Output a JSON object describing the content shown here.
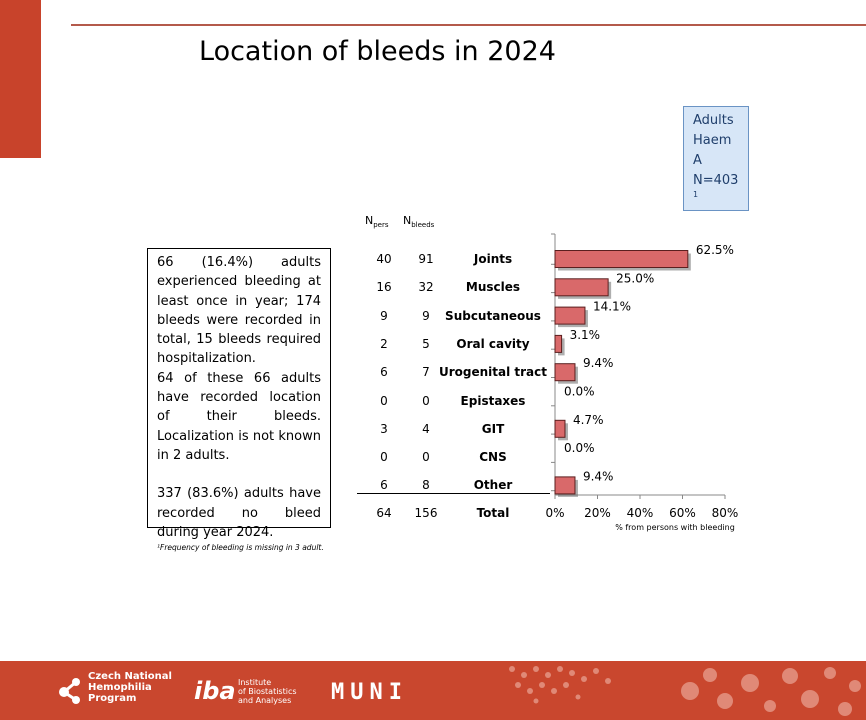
{
  "title": "Location of bleeds in 2024",
  "info_box": {
    "lines": [
      "Adults",
      "Haem",
      "A",
      "N=403"
    ],
    "superscript": "1"
  },
  "text_box": {
    "para1": "66 (16.4%) adults experienced bleeding at least once in year; 174 bleeds were recorded in total, 15 bleeds required hospitalization.",
    "para2": "64 of these 66 adults have recorded location of their bleeds. Localization is not known in 2 adults.",
    "para3": "337 (83.6%) adults have recorded no bleed during year 2024."
  },
  "footnote": "¹Frequency of bleeding is missing in 3 adult.",
  "table": {
    "header_npers": "N",
    "header_npers_sub": "pers",
    "header_nbleeds": "N",
    "header_nbleeds_sub": "bleeds",
    "rows": [
      {
        "npers": "40",
        "nbleeds": "91"
      },
      {
        "npers": "16",
        "nbleeds": "32"
      },
      {
        "npers": "9",
        "nbleeds": "9"
      },
      {
        "npers": "2",
        "nbleeds": "5"
      },
      {
        "npers": "6",
        "nbleeds": "7"
      },
      {
        "npers": "0",
        "nbleeds": "0"
      },
      {
        "npers": "3",
        "nbleeds": "4"
      },
      {
        "npers": "0",
        "nbleeds": "0"
      },
      {
        "npers": "6",
        "nbleeds": "8"
      }
    ],
    "total": {
      "npers": "64",
      "nbleeds": "156",
      "label": "Total"
    }
  },
  "chart_data": {
    "type": "bar",
    "orientation": "horizontal",
    "categories": [
      "Joints",
      "Muscles",
      "Subcutaneous",
      "Oral cavity",
      "Urogenital tract",
      "Epistaxes",
      "GIT",
      "CNS",
      "Other"
    ],
    "values": [
      62.5,
      25.0,
      14.1,
      3.1,
      9.4,
      0.0,
      4.7,
      0.0,
      9.4
    ],
    "value_labels": [
      "62.5%",
      "25.0%",
      "14.1%",
      "3.1%",
      "9.4%",
      "0.0%",
      "4.7%",
      "0.0%",
      "9.4%"
    ],
    "xlim": [
      0,
      80
    ],
    "xticks": [
      "0%",
      "20%",
      "40%",
      "60%",
      "80%"
    ],
    "xlabel": "% from persons with bleeding",
    "bar_color": "#d9696a",
    "grid": false
  },
  "footer": {
    "logo1": [
      "Czech National",
      "Hemophilia",
      "Program"
    ],
    "logo2_mark": "iba",
    "logo2_text": [
      "Institute",
      "of Biostatistics",
      "and Analyses"
    ],
    "logo3": "MUNI",
    "color": "#c9472e"
  }
}
